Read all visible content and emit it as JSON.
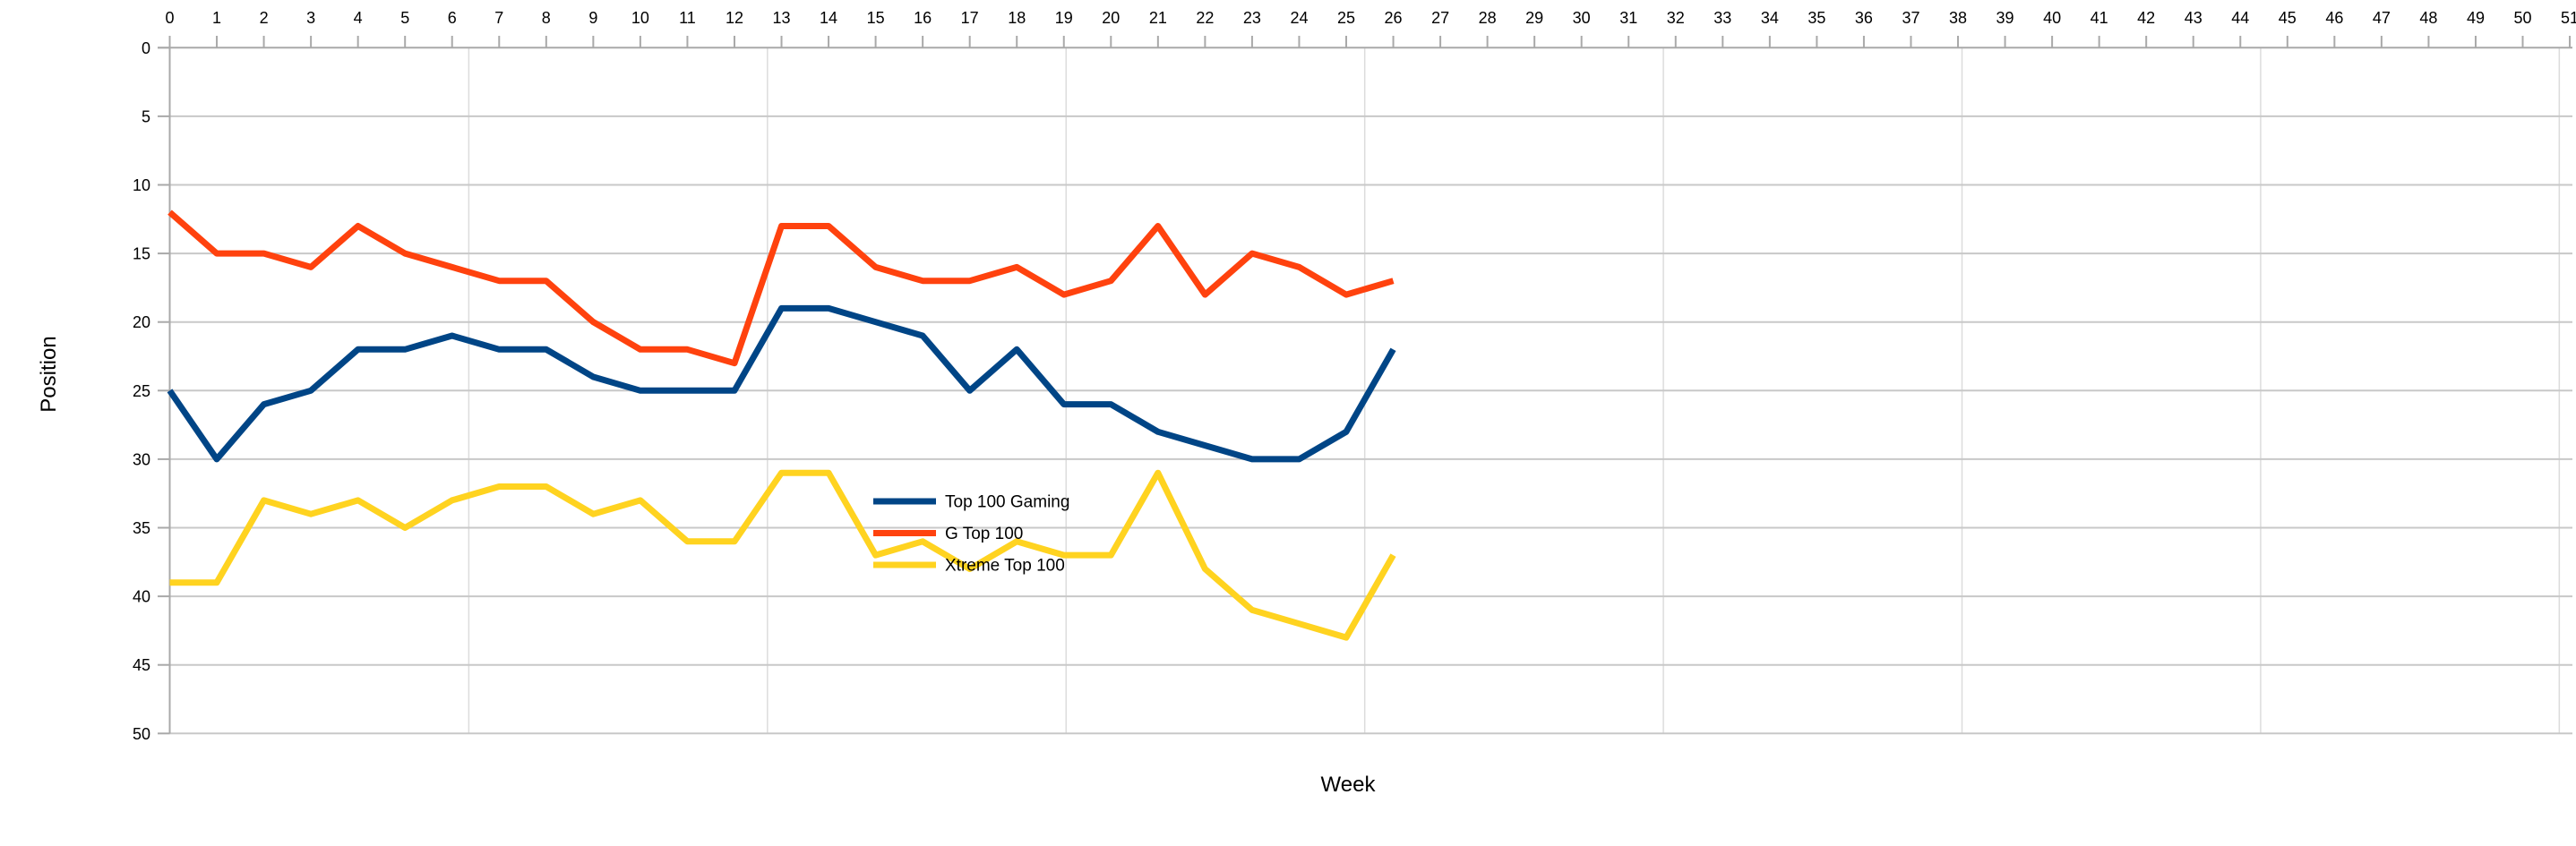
{
  "chart_data": {
    "type": "line",
    "title": "",
    "xlabel": "Week",
    "ylabel": "Position",
    "x_axis_ticks": [
      0,
      1,
      2,
      3,
      4,
      5,
      6,
      7,
      8,
      9,
      10,
      11,
      12,
      13,
      14,
      15,
      16,
      17,
      18,
      19,
      20,
      21,
      22,
      23,
      24,
      25,
      26,
      27,
      28,
      29,
      30,
      31,
      32,
      33,
      34,
      35,
      36,
      37,
      38,
      39,
      40,
      41,
      42,
      43,
      44,
      45,
      46,
      47,
      48,
      49,
      50,
      51
    ],
    "y_axis_ticks": [
      0,
      5,
      10,
      15,
      20,
      25,
      30,
      35,
      40,
      45,
      50
    ],
    "xlim": [
      0,
      51
    ],
    "ylim": [
      0,
      50
    ],
    "y_axis_inverted": true,
    "grid": true,
    "legend_position": "center-inside",
    "x": [
      0,
      1,
      2,
      3,
      4,
      5,
      6,
      7,
      8,
      9,
      10,
      11,
      12,
      13,
      14,
      15,
      16,
      17,
      18,
      19,
      20,
      21,
      22,
      23,
      24,
      25,
      26
    ],
    "series": [
      {
        "name": "Top 100 Gaming",
        "color": "#004586",
        "values": [
          25,
          30,
          26,
          25,
          22,
          22,
          21,
          22,
          22,
          24,
          25,
          25,
          25,
          19,
          19,
          20,
          21,
          25,
          22,
          26,
          26,
          28,
          29,
          30,
          30,
          28,
          22
        ]
      },
      {
        "name": "G Top 100",
        "color": "#ff420e",
        "values": [
          12,
          15,
          15,
          16,
          13,
          15,
          16,
          17,
          17,
          20,
          22,
          22,
          23,
          13,
          13,
          16,
          17,
          17,
          16,
          18,
          17,
          13,
          18,
          15,
          16,
          18,
          17
        ]
      },
      {
        "name": "Xtreme Top 100",
        "color": "#ffd320",
        "values": [
          39,
          39,
          33,
          34,
          33,
          35,
          33,
          32,
          32,
          34,
          33,
          36,
          36,
          31,
          31,
          37,
          36,
          38,
          36,
          37,
          37,
          31,
          38,
          41,
          42,
          43,
          37
        ]
      }
    ]
  },
  "style_colors": {
    "axis": "#a9a9a9",
    "gridline": "#c8c8c8",
    "column_guide": "#dcdcdc",
    "text": "#000000",
    "background": "#ffffff"
  }
}
